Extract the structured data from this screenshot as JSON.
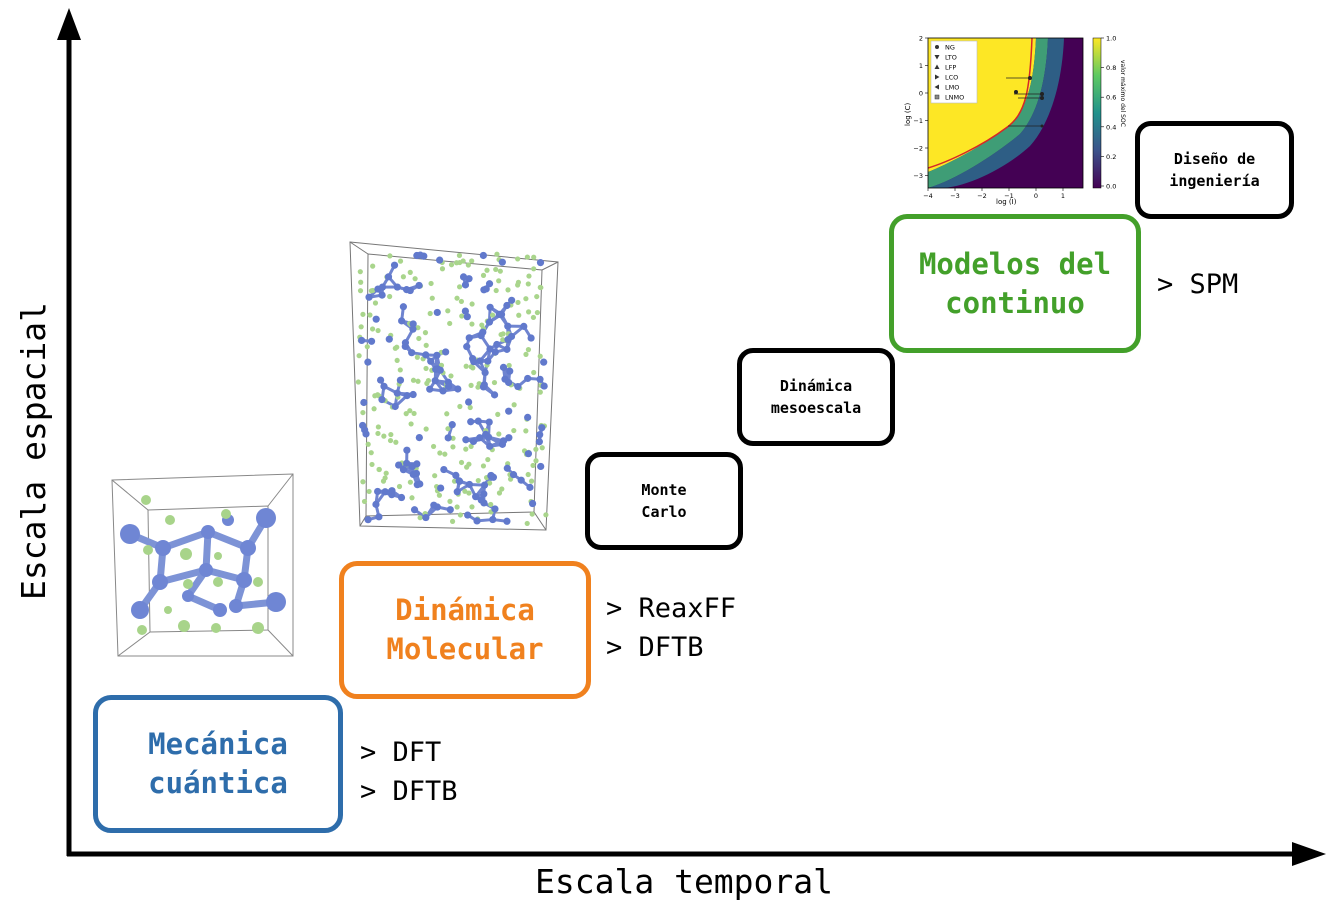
{
  "axes": {
    "x_label": "Escala temporal",
    "y_label": "Escala espacial"
  },
  "colors": {
    "quantum": "#2e6dab",
    "molecular": "#f0811e",
    "continuum": "#43a02a",
    "black": "#000000"
  },
  "stages": {
    "quantum": {
      "lines": [
        "Mecánica",
        "cuántica"
      ],
      "methods": [
        "> DFT",
        "> DFTB"
      ]
    },
    "molecular": {
      "lines": [
        "Dinámica",
        "Molecular"
      ],
      "methods": [
        "> ReaxFF",
        "> DFTB"
      ]
    },
    "montecarlo": {
      "lines": [
        "Monte",
        "Carlo"
      ]
    },
    "mesoscale": {
      "lines": [
        "Dinámica",
        "mesoescala"
      ]
    },
    "continuum": {
      "lines": [
        "Modelos del",
        "continuo"
      ],
      "methods": [
        "> SPM"
      ]
    },
    "engineering": {
      "lines": [
        "Diseño de",
        "ingeniería"
      ]
    }
  },
  "inset_plot": {
    "xlabel": "log (I)",
    "ylabel": "log (C)",
    "colorbar_label": "valor máximo del SOC",
    "x_ticks": [
      "−4",
      "−3",
      "−2",
      "−1",
      "0",
      "1"
    ],
    "y_ticks": [
      "2",
      "1",
      "0",
      "−1",
      "−2",
      "−3"
    ],
    "colorbar_ticks": [
      "1.0",
      "0.8",
      "0.6",
      "0.4",
      "0.2",
      "0.0"
    ],
    "legend": [
      {
        "label": "NG",
        "marker": "circle"
      },
      {
        "label": "LTO",
        "marker": "triangle-down"
      },
      {
        "label": "LFP",
        "marker": "triangle-up"
      },
      {
        "label": "LCO",
        "marker": "triangle-right"
      },
      {
        "label": "LMO",
        "marker": "triangle-left"
      },
      {
        "label": "LNMO",
        "marker": "square"
      }
    ]
  }
}
